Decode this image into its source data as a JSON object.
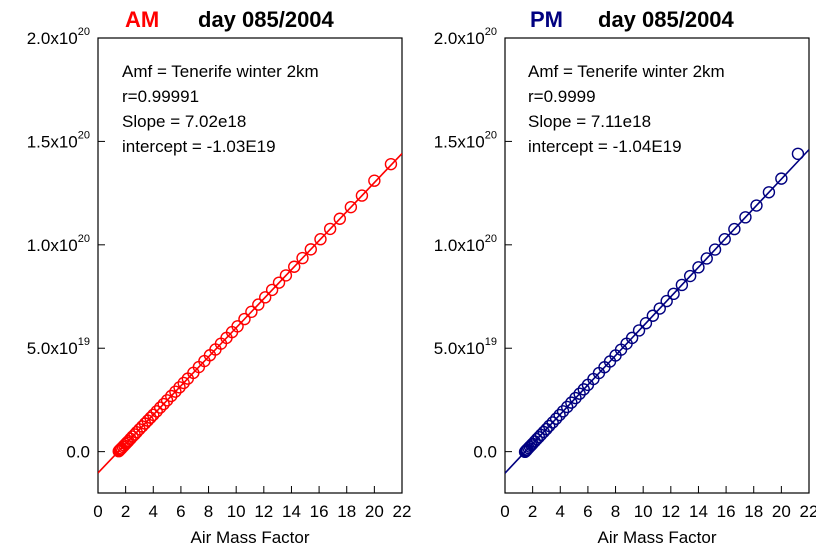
{
  "chart_data": [
    {
      "type": "scatter",
      "title_tag": "AM",
      "title_rest": "day 085/2004",
      "xlabel": "Air Mass Factor",
      "ylabel": "",
      "xlim": [
        0,
        22
      ],
      "ylim": [
        -2e+19,
        2e+20
      ],
      "xticks": [
        0,
        2,
        4,
        6,
        8,
        10,
        12,
        14,
        16,
        18,
        20,
        22
      ],
      "yticks": [
        {
          "value": 0,
          "mantissa": "0.0",
          "exp": ""
        },
        {
          "value": 5e+19,
          "mantissa": "5.0x10",
          "exp": "19"
        },
        {
          "value": 1e+20,
          "mantissa": "1.0x10",
          "exp": "20"
        },
        {
          "value": 1.5e+20,
          "mantissa": "1.5x10",
          "exp": "20"
        },
        {
          "value": 2e+20,
          "mantissa": "2.0x10",
          "exp": "20"
        }
      ],
      "annotations": [
        "Amf = Tenerife winter  2km",
        "r=0.99991",
        "Slope = 7.02e18",
        "intercept = -1.03E19"
      ],
      "fit": {
        "slope": 7.02e+18,
        "intercept": -1.03e+19
      },
      "x": [
        1.5,
        1.55,
        1.6,
        1.65,
        1.7,
        1.8,
        1.9,
        2.0,
        2.1,
        2.2,
        2.35,
        2.5,
        2.65,
        2.8,
        3.0,
        3.2,
        3.4,
        3.6,
        3.8,
        4.0,
        4.25,
        4.5,
        4.75,
        5.0,
        5.3,
        5.6,
        5.9,
        6.2,
        6.5,
        6.9,
        7.3,
        7.7,
        8.1,
        8.5,
        8.9,
        9.3,
        9.7,
        10.1,
        10.6,
        11.1,
        11.6,
        12.1,
        12.6,
        13.1,
        13.6,
        14.2,
        14.8,
        15.4,
        16.1,
        16.8,
        17.5,
        18.3,
        19.1,
        20.0,
        21.2
      ],
      "y": [
        2e+17,
        6e+17,
        9e+17,
        1.3e+18,
        1.6e+18,
        2.3e+18,
        3e+18,
        3.7e+18,
        4.4e+18,
        5.1e+18,
        6.2e+18,
        7.3e+18,
        8.3e+18,
        9.4e+18,
        1.08e+19,
        1.22e+19,
        1.36e+19,
        1.5e+19,
        1.64e+19,
        1.78e+19,
        1.95e+19,
        2.13e+19,
        2.3e+19,
        2.48e+19,
        2.69e+19,
        2.9e+19,
        3.11e+19,
        3.32e+19,
        3.53e+19,
        3.81e+19,
        4.09e+19,
        4.38e+19,
        4.66e+19,
        4.94e+19,
        5.22e+19,
        5.5e+19,
        5.78e+19,
        6.06e+19,
        6.41e+19,
        6.76e+19,
        7.11e+19,
        7.46e+19,
        7.82e+19,
        8.17e+19,
        8.52e+19,
        8.94e+19,
        9.36e+19,
        9.78e+19,
        1.027e+20,
        1.077e+20,
        1.126e+20,
        1.182e+20,
        1.238e+20,
        1.31e+20,
        1.39e+20
      ],
      "color": "#ff0000"
    },
    {
      "type": "scatter",
      "title_tag": "PM",
      "title_rest": "day 085/2004",
      "xlabel": "Air Mass Factor",
      "ylabel": "",
      "xlim": [
        0,
        22
      ],
      "ylim": [
        -2e+19,
        2e+20
      ],
      "xticks": [
        0,
        2,
        4,
        6,
        8,
        10,
        12,
        14,
        16,
        18,
        20,
        22
      ],
      "yticks": [
        {
          "value": 0,
          "mantissa": "0.0",
          "exp": ""
        },
        {
          "value": 5e+19,
          "mantissa": "5.0x10",
          "exp": "19"
        },
        {
          "value": 1e+20,
          "mantissa": "1.0x10",
          "exp": "20"
        },
        {
          "value": 1.5e+20,
          "mantissa": "1.5x10",
          "exp": "20"
        },
        {
          "value": 2e+20,
          "mantissa": "2.0x10",
          "exp": "20"
        }
      ],
      "annotations": [
        "Amf = Tenerife winter 2km",
        "r=0.9999",
        "Slope = 7.11e18",
        "intercept = -1.04E19"
      ],
      "fit": {
        "slope": 7.11e+18,
        "intercept": -1.04e+19
      },
      "x": [
        1.45,
        1.5,
        1.55,
        1.6,
        1.7,
        1.8,
        1.9,
        2.0,
        2.15,
        2.3,
        2.45,
        2.6,
        2.8,
        3.0,
        3.2,
        3.45,
        3.7,
        3.95,
        4.2,
        4.5,
        4.8,
        5.1,
        5.4,
        5.7,
        6.0,
        6.4,
        6.8,
        7.2,
        7.6,
        8.0,
        8.4,
        8.8,
        9.2,
        9.7,
        10.2,
        10.7,
        11.2,
        11.7,
        12.2,
        12.8,
        13.4,
        14.0,
        14.6,
        15.2,
        15.9,
        16.6,
        17.4,
        18.2,
        19.1,
        20.0,
        21.2
      ],
      "y": [
        -1e+17,
        3e+17,
        6e+17,
        1e+18,
        1.7e+18,
        2.4e+18,
        3.1e+18,
        3.8e+18,
        4.9e+18,
        6e+18,
        7e+18,
        8.1e+18,
        9.5e+18,
        1.09e+19,
        1.24e+19,
        1.41e+19,
        1.59e+19,
        1.77e+19,
        1.95e+19,
        2.16e+19,
        2.37e+19,
        2.59e+19,
        2.8e+19,
        3.01e+19,
        3.23e+19,
        3.51e+19,
        3.8e+19,
        4.08e+19,
        4.36e+19,
        4.65e+19,
        4.93e+19,
        5.22e+19,
        5.5e+19,
        5.86e+19,
        6.21e+19,
        6.57e+19,
        6.92e+19,
        7.28e+19,
        7.63e+19,
        8.06e+19,
        8.49e+19,
        8.91e+19,
        9.34e+19,
        9.77e+19,
        1.027e+20,
        1.076e+20,
        1.133e+20,
        1.19e+20,
        1.254e+20,
        1.32e+20,
        1.44e+20
      ],
      "color": "#000080"
    }
  ]
}
